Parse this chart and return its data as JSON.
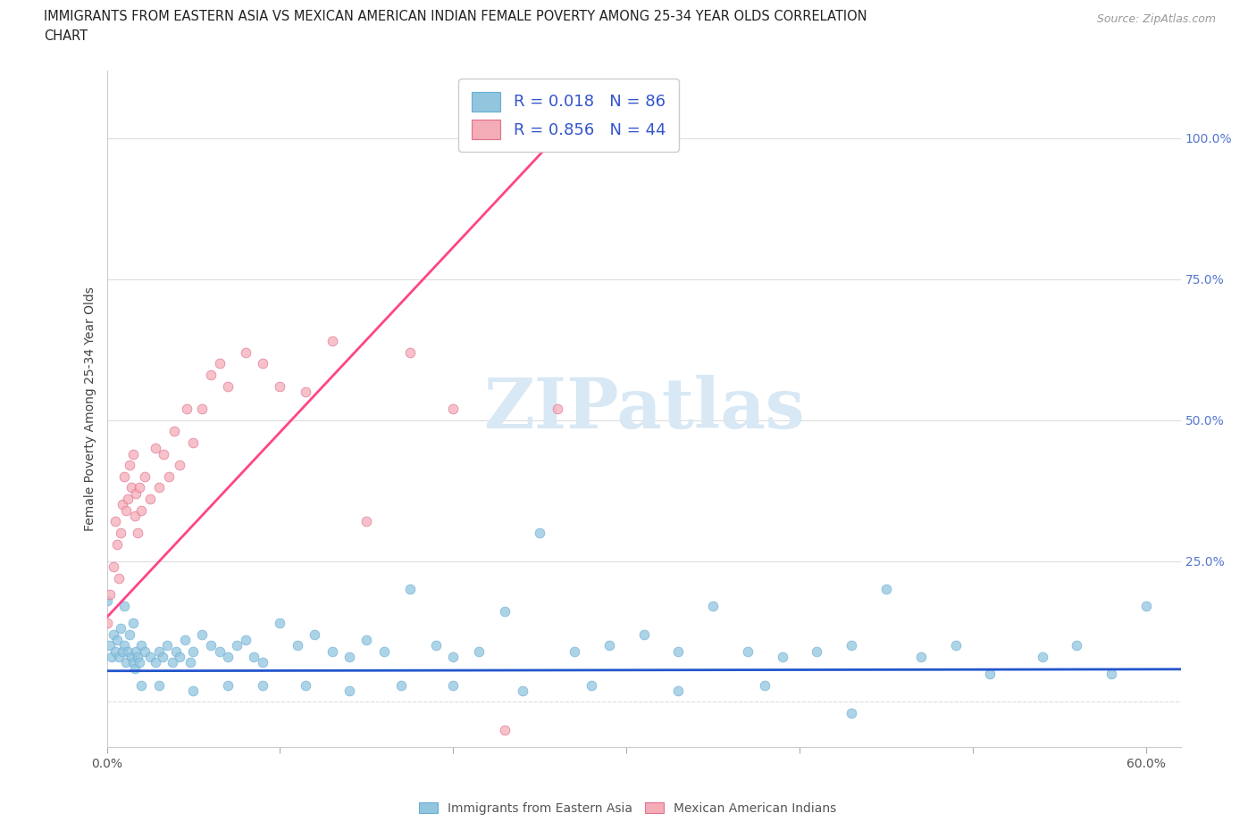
{
  "title_line1": "IMMIGRANTS FROM EASTERN ASIA VS MEXICAN AMERICAN INDIAN FEMALE POVERTY AMONG 25-34 YEAR OLDS CORRELATION",
  "title_line2": "CHART",
  "source": "Source: ZipAtlas.com",
  "ylabel": "Female Poverty Among 25-34 Year Olds",
  "xlim": [
    0.0,
    0.62
  ],
  "ylim": [
    -0.08,
    1.12
  ],
  "xticks": [
    0.0,
    0.1,
    0.2,
    0.3,
    0.4,
    0.5,
    0.6
  ],
  "xticklabels": [
    "0.0%",
    "",
    "",
    "",
    "",
    "",
    "60.0%"
  ],
  "ytick_positions": [
    0.0,
    0.25,
    0.5,
    0.75,
    1.0
  ],
  "yticklabels": [
    "",
    "25.0%",
    "50.0%",
    "75.0%",
    "100.0%"
  ],
  "blue_color": "#92C5DE",
  "pink_color": "#F4ACB7",
  "blue_line_color": "#2255CC",
  "pink_line_color": "#FF4488",
  "R_blue": "0.018",
  "N_blue": "86",
  "R_pink": "0.856",
  "N_pink": "44",
  "watermark": "ZIPatlas",
  "watermark_color": "#D8E8F5",
  "grid_color": "#DDDDDD",
  "background_color": "#FFFFFF",
  "blue_trend_x": [
    0.0,
    0.62
  ],
  "blue_trend_y": [
    0.055,
    0.058
  ],
  "pink_trend_x": [
    0.0,
    0.265
  ],
  "pink_trend_y": [
    0.15,
    1.02
  ],
  "blue_scatter_x": [
    0.0,
    0.002,
    0.003,
    0.004,
    0.005,
    0.006,
    0.007,
    0.008,
    0.009,
    0.01,
    0.01,
    0.011,
    0.012,
    0.013,
    0.014,
    0.015,
    0.015,
    0.016,
    0.017,
    0.018,
    0.019,
    0.02,
    0.022,
    0.025,
    0.028,
    0.03,
    0.032,
    0.035,
    0.038,
    0.04,
    0.042,
    0.045,
    0.048,
    0.05,
    0.055,
    0.06,
    0.065,
    0.07,
    0.075,
    0.08,
    0.085,
    0.09,
    0.1,
    0.11,
    0.12,
    0.13,
    0.14,
    0.15,
    0.16,
    0.175,
    0.19,
    0.2,
    0.215,
    0.23,
    0.25,
    0.27,
    0.29,
    0.31,
    0.33,
    0.35,
    0.37,
    0.39,
    0.41,
    0.43,
    0.45,
    0.47,
    0.49,
    0.51,
    0.54,
    0.56,
    0.58,
    0.6,
    0.02,
    0.03,
    0.05,
    0.07,
    0.09,
    0.115,
    0.14,
    0.17,
    0.2,
    0.24,
    0.28,
    0.33,
    0.38,
    0.43
  ],
  "blue_scatter_y": [
    0.18,
    0.1,
    0.08,
    0.12,
    0.09,
    0.11,
    0.08,
    0.13,
    0.09,
    0.1,
    0.17,
    0.07,
    0.09,
    0.12,
    0.08,
    0.07,
    0.14,
    0.06,
    0.09,
    0.08,
    0.07,
    0.1,
    0.09,
    0.08,
    0.07,
    0.09,
    0.08,
    0.1,
    0.07,
    0.09,
    0.08,
    0.11,
    0.07,
    0.09,
    0.12,
    0.1,
    0.09,
    0.08,
    0.1,
    0.11,
    0.08,
    0.07,
    0.14,
    0.1,
    0.12,
    0.09,
    0.08,
    0.11,
    0.09,
    0.2,
    0.1,
    0.08,
    0.09,
    0.16,
    0.3,
    0.09,
    0.1,
    0.12,
    0.09,
    0.17,
    0.09,
    0.08,
    0.09,
    0.1,
    0.2,
    0.08,
    0.1,
    0.05,
    0.08,
    0.1,
    0.05,
    0.17,
    0.03,
    0.03,
    0.02,
    0.03,
    0.03,
    0.03,
    0.02,
    0.03,
    0.03,
    0.02,
    0.03,
    0.02,
    0.03,
    -0.02
  ],
  "pink_scatter_x": [
    0.0,
    0.002,
    0.004,
    0.005,
    0.006,
    0.007,
    0.008,
    0.009,
    0.01,
    0.011,
    0.012,
    0.013,
    0.014,
    0.015,
    0.016,
    0.017,
    0.018,
    0.019,
    0.02,
    0.022,
    0.025,
    0.028,
    0.03,
    0.033,
    0.036,
    0.039,
    0.042,
    0.046,
    0.05,
    0.055,
    0.06,
    0.065,
    0.07,
    0.08,
    0.09,
    0.1,
    0.115,
    0.13,
    0.15,
    0.175,
    0.2,
    0.23,
    0.26,
    0.265
  ],
  "pink_scatter_y": [
    0.14,
    0.19,
    0.24,
    0.32,
    0.28,
    0.22,
    0.3,
    0.35,
    0.4,
    0.34,
    0.36,
    0.42,
    0.38,
    0.44,
    0.33,
    0.37,
    0.3,
    0.38,
    0.34,
    0.4,
    0.36,
    0.45,
    0.38,
    0.44,
    0.4,
    0.48,
    0.42,
    0.52,
    0.46,
    0.52,
    0.58,
    0.6,
    0.56,
    0.62,
    0.6,
    0.56,
    0.55,
    0.64,
    0.32,
    0.62,
    0.52,
    -0.05,
    0.52,
    1.02
  ]
}
